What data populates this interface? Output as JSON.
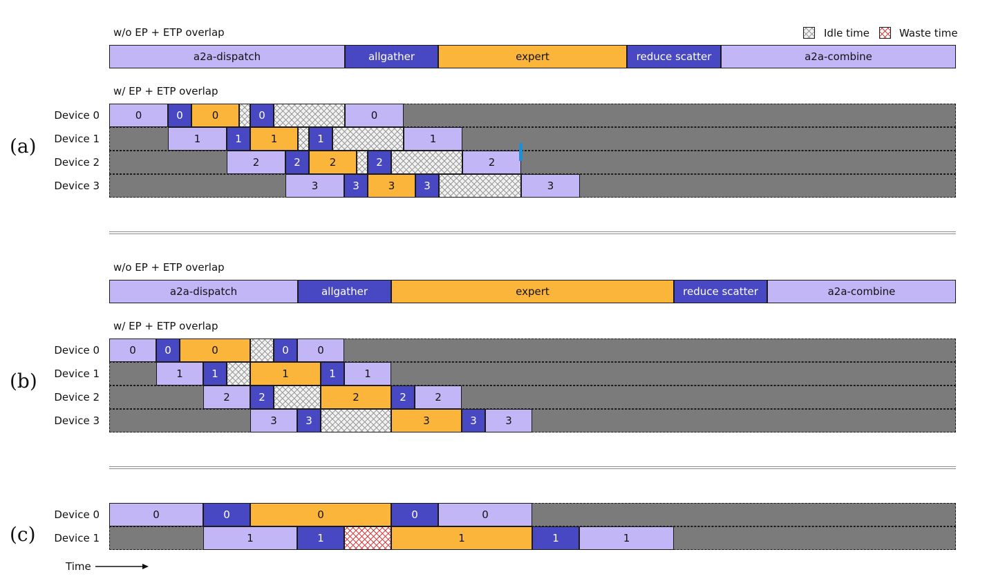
{
  "colors": {
    "dispatch": "#c3b6f7",
    "gather": "#4848c2",
    "expert": "#fbb53a",
    "scatter": "#4848c2",
    "combine": "#c3b6f7",
    "bg": "#7b7b7b",
    "marker": "#1f8fd6"
  },
  "legend": {
    "idle": "Idle time",
    "waste": "Waste time"
  },
  "time_label": "Time",
  "panels": [
    {
      "label": "(a)",
      "title_seq": "w/o EP + ETP overlap",
      "title_ovl": "w/ EP + ETP overlap",
      "seq": [
        {
          "type": "dispatch",
          "label": "a2a-dispatch"
        },
        {
          "type": "gather",
          "label": "allgather"
        },
        {
          "type": "expert",
          "label": "expert"
        },
        {
          "type": "scatter",
          "label": "reduce scatter"
        },
        {
          "type": "combine",
          "label": "a2a-combine"
        }
      ],
      "devices": [
        {
          "name": "Device 0",
          "segs": [
            {
              "type": "dispatch",
              "label": "0"
            },
            {
              "type": "gather",
              "label": "0"
            },
            {
              "type": "expert",
              "label": "0"
            },
            {
              "type": "idle",
              "label": ""
            },
            {
              "type": "scatter",
              "label": "0"
            },
            {
              "type": "idle",
              "label": ""
            },
            {
              "type": "combine",
              "label": "0"
            }
          ]
        },
        {
          "name": "Device 1",
          "segs": [
            {
              "type": "dispatch",
              "label": "1"
            },
            {
              "type": "gather",
              "label": "1"
            },
            {
              "type": "expert",
              "label": "1"
            },
            {
              "type": "idle",
              "label": ""
            },
            {
              "type": "scatter",
              "label": "1"
            },
            {
              "type": "idle",
              "label": ""
            },
            {
              "type": "combine",
              "label": "1"
            }
          ]
        },
        {
          "name": "Device 2",
          "segs": [
            {
              "type": "dispatch",
              "label": "2"
            },
            {
              "type": "gather",
              "label": "2"
            },
            {
              "type": "expert",
              "label": "2"
            },
            {
              "type": "idle",
              "label": ""
            },
            {
              "type": "scatter",
              "label": "2"
            },
            {
              "type": "idle",
              "label": ""
            },
            {
              "type": "combine",
              "label": "2"
            }
          ]
        },
        {
          "name": "Device 3",
          "segs": [
            {
              "type": "dispatch",
              "label": "3"
            },
            {
              "type": "gather",
              "label": "3"
            },
            {
              "type": "expert",
              "label": "3"
            },
            {
              "type": "scatter",
              "label": "3"
            },
            {
              "type": "idle",
              "label": ""
            },
            {
              "type": "combine",
              "label": "3"
            }
          ]
        }
      ]
    },
    {
      "label": "(b)",
      "title_seq": "w/o EP + ETP overlap",
      "title_ovl": "w/ EP + ETP overlap",
      "seq": [
        {
          "type": "dispatch",
          "label": "a2a-dispatch"
        },
        {
          "type": "gather",
          "label": "allgather"
        },
        {
          "type": "expert",
          "label": "expert"
        },
        {
          "type": "scatter",
          "label": "reduce scatter"
        },
        {
          "type": "combine",
          "label": "a2a-combine"
        }
      ],
      "devices": [
        {
          "name": "Device 0",
          "segs": [
            {
              "type": "dispatch",
              "label": "0"
            },
            {
              "type": "gather",
              "label": "0"
            },
            {
              "type": "expert",
              "label": "0"
            },
            {
              "type": "idle",
              "label": ""
            },
            {
              "type": "scatter",
              "label": "0"
            },
            {
              "type": "combine",
              "label": "0"
            }
          ]
        },
        {
          "name": "Device 1",
          "segs": [
            {
              "type": "dispatch",
              "label": "1"
            },
            {
              "type": "gather",
              "label": "1"
            },
            {
              "type": "idle",
              "label": ""
            },
            {
              "type": "expert",
              "label": "1"
            },
            {
              "type": "scatter",
              "label": "1"
            },
            {
              "type": "combine",
              "label": "1"
            }
          ]
        },
        {
          "name": "Device 2",
          "segs": [
            {
              "type": "dispatch",
              "label": "2"
            },
            {
              "type": "gather",
              "label": "2"
            },
            {
              "type": "idle",
              "label": ""
            },
            {
              "type": "expert",
              "label": "2"
            },
            {
              "type": "scatter",
              "label": "2"
            },
            {
              "type": "combine",
              "label": "2"
            }
          ]
        },
        {
          "name": "Device 3",
          "segs": [
            {
              "type": "dispatch",
              "label": "3"
            },
            {
              "type": "gather",
              "label": "3"
            },
            {
              "type": "idle",
              "label": ""
            },
            {
              "type": "expert",
              "label": "3"
            },
            {
              "type": "scatter",
              "label": "3"
            },
            {
              "type": "combine",
              "label": "3"
            }
          ]
        }
      ]
    },
    {
      "label": "(c)",
      "devices": [
        {
          "name": "Device 0",
          "segs": [
            {
              "type": "dispatch",
              "label": "0"
            },
            {
              "type": "gather",
              "label": "0"
            },
            {
              "type": "expert",
              "label": "0"
            },
            {
              "type": "scatter",
              "label": "0"
            },
            {
              "type": "combine",
              "label": "0"
            }
          ]
        },
        {
          "name": "Device 1",
          "segs": [
            {
              "type": "dispatch",
              "label": "1"
            },
            {
              "type": "gather",
              "label": "1"
            },
            {
              "type": "waste",
              "label": ""
            },
            {
              "type": "expert",
              "label": "1"
            },
            {
              "type": "scatter",
              "label": "1"
            },
            {
              "type": "combine",
              "label": "1"
            }
          ]
        }
      ]
    }
  ]
}
